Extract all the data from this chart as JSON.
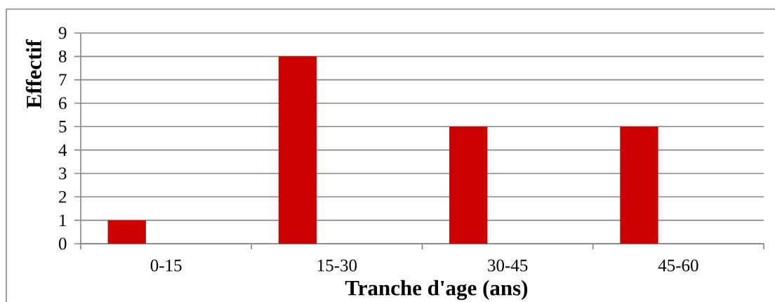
{
  "chart_data": {
    "type": "bar",
    "categories": [
      "0-15",
      "15-30",
      "30-45",
      "45-60"
    ],
    "values": [
      1,
      8,
      5,
      5
    ],
    "color": "#cc0000",
    "xlabel": "Tranche d'age (ans)",
    "ylabel": "Effectif",
    "ylim": [
      0,
      9
    ],
    "yticks": [
      0,
      1,
      2,
      3,
      4,
      5,
      6,
      7,
      8,
      9
    ],
    "grid": "y"
  }
}
